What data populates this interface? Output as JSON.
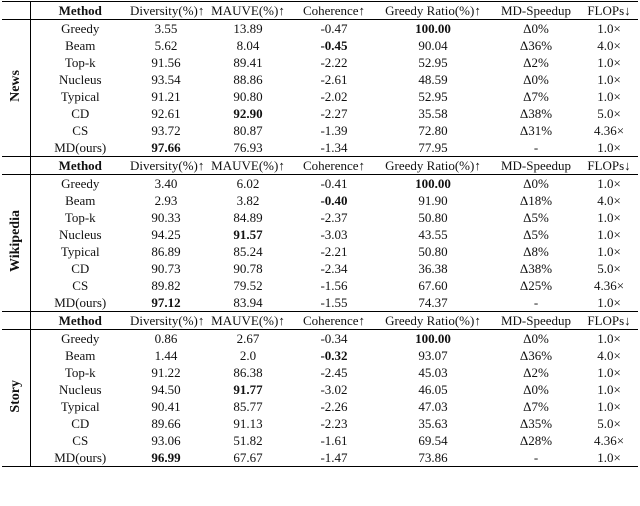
{
  "sections": [
    {
      "label": "News",
      "header": [
        "Method",
        "Diversity(%)↑",
        "MAUVE(%)↑",
        "Coherence↑",
        "Greedy Ratio(%)↑",
        "MD-Speedup",
        "FLOPs↓"
      ],
      "rows": [
        [
          "Greedy",
          "3.55",
          "13.89",
          "-0.47",
          "100.00",
          "Δ0%",
          "1.0×"
        ],
        [
          "Beam",
          "5.62",
          "8.04",
          "-0.45",
          "90.04",
          "Δ36%",
          "4.0×"
        ],
        [
          "Top-k",
          "91.56",
          "89.41",
          "-2.22",
          "52.95",
          "Δ2%",
          "1.0×"
        ],
        [
          "Nucleus",
          "93.54",
          "88.86",
          "-2.61",
          "48.59",
          "Δ0%",
          "1.0×"
        ],
        [
          "Typical",
          "91.21",
          "90.80",
          "-2.02",
          "52.95",
          "Δ7%",
          "1.0×"
        ],
        [
          "CD",
          "92.61",
          "92.90",
          "-2.27",
          "35.58",
          "Δ38%",
          "5.0×"
        ],
        [
          "CS",
          "93.72",
          "80.87",
          "-1.39",
          "72.80",
          "Δ31%",
          "4.36×"
        ],
        [
          "MD(ours)",
          "97.66",
          "76.93",
          "-1.34",
          "77.95",
          "-",
          "1.0×"
        ]
      ],
      "bold": [
        [
          0,
          4
        ],
        [
          1,
          3
        ],
        [
          5,
          2
        ],
        [
          7,
          1
        ]
      ]
    },
    {
      "label": "Wikipedia",
      "header": [
        "Method",
        "Diversity(%)↑",
        "MAUVE(%)↑",
        "Coherence↑",
        "Greedy Ratio(%)↑",
        "MD-Speedup",
        "FLOPs↓"
      ],
      "rows": [
        [
          "Greedy",
          "3.40",
          "6.02",
          "-0.41",
          "100.00",
          "Δ0%",
          "1.0×"
        ],
        [
          "Beam",
          "2.93",
          "3.82",
          "-0.40",
          "91.90",
          "Δ18%",
          "4.0×"
        ],
        [
          "Top-k",
          "90.33",
          "84.89",
          "-2.37",
          "50.80",
          "Δ5%",
          "1.0×"
        ],
        [
          "Nucleus",
          "94.25",
          "91.57",
          "-3.03",
          "43.55",
          "Δ5%",
          "1.0×"
        ],
        [
          "Typical",
          "86.89",
          "85.24",
          "-2.21",
          "50.80",
          "Δ8%",
          "1.0×"
        ],
        [
          "CD",
          "90.73",
          "90.78",
          "-2.34",
          "36.38",
          "Δ38%",
          "5.0×"
        ],
        [
          "CS",
          "89.82",
          "79.52",
          "-1.56",
          "67.60",
          "Δ25%",
          "4.36×"
        ],
        [
          "MD(ours)",
          "97.12",
          "83.94",
          "-1.55",
          "74.37",
          "-",
          "1.0×"
        ]
      ],
      "bold": [
        [
          0,
          4
        ],
        [
          1,
          3
        ],
        [
          3,
          2
        ],
        [
          7,
          1
        ]
      ]
    },
    {
      "label": "Story",
      "header": [
        "Method",
        "Diversity(%)↑",
        "MAUVE(%)↑",
        "Coherence↑",
        "Greedy Ratio(%)↑",
        "MD-Speedup",
        "FLOPs↓"
      ],
      "rows": [
        [
          "Greedy",
          "0.86",
          "2.67",
          "-0.34",
          "100.00",
          "Δ0%",
          "1.0×"
        ],
        [
          "Beam",
          "1.44",
          "2.0",
          "-0.32",
          "93.07",
          "Δ36%",
          "4.0×"
        ],
        [
          "Top-k",
          "91.22",
          "86.38",
          "-2.45",
          "45.03",
          "Δ2%",
          "1.0×"
        ],
        [
          "Nucleus",
          "94.50",
          "91.77",
          "-3.02",
          "46.05",
          "Δ0%",
          "1.0×"
        ],
        [
          "Typical",
          "90.41",
          "85.77",
          "-2.26",
          "47.03",
          "Δ7%",
          "1.0×"
        ],
        [
          "CD",
          "89.66",
          "91.13",
          "-2.23",
          "35.63",
          "Δ35%",
          "5.0×"
        ],
        [
          "CS",
          "93.06",
          "51.82",
          "-1.61",
          "69.54",
          "Δ28%",
          "4.36×"
        ],
        [
          "MD(ours)",
          "96.99",
          "67.67",
          "-1.47",
          "73.86",
          "-",
          "1.0×"
        ]
      ],
      "bold": [
        [
          0,
          4
        ],
        [
          1,
          3
        ],
        [
          3,
          2
        ],
        [
          7,
          1
        ]
      ]
    }
  ]
}
